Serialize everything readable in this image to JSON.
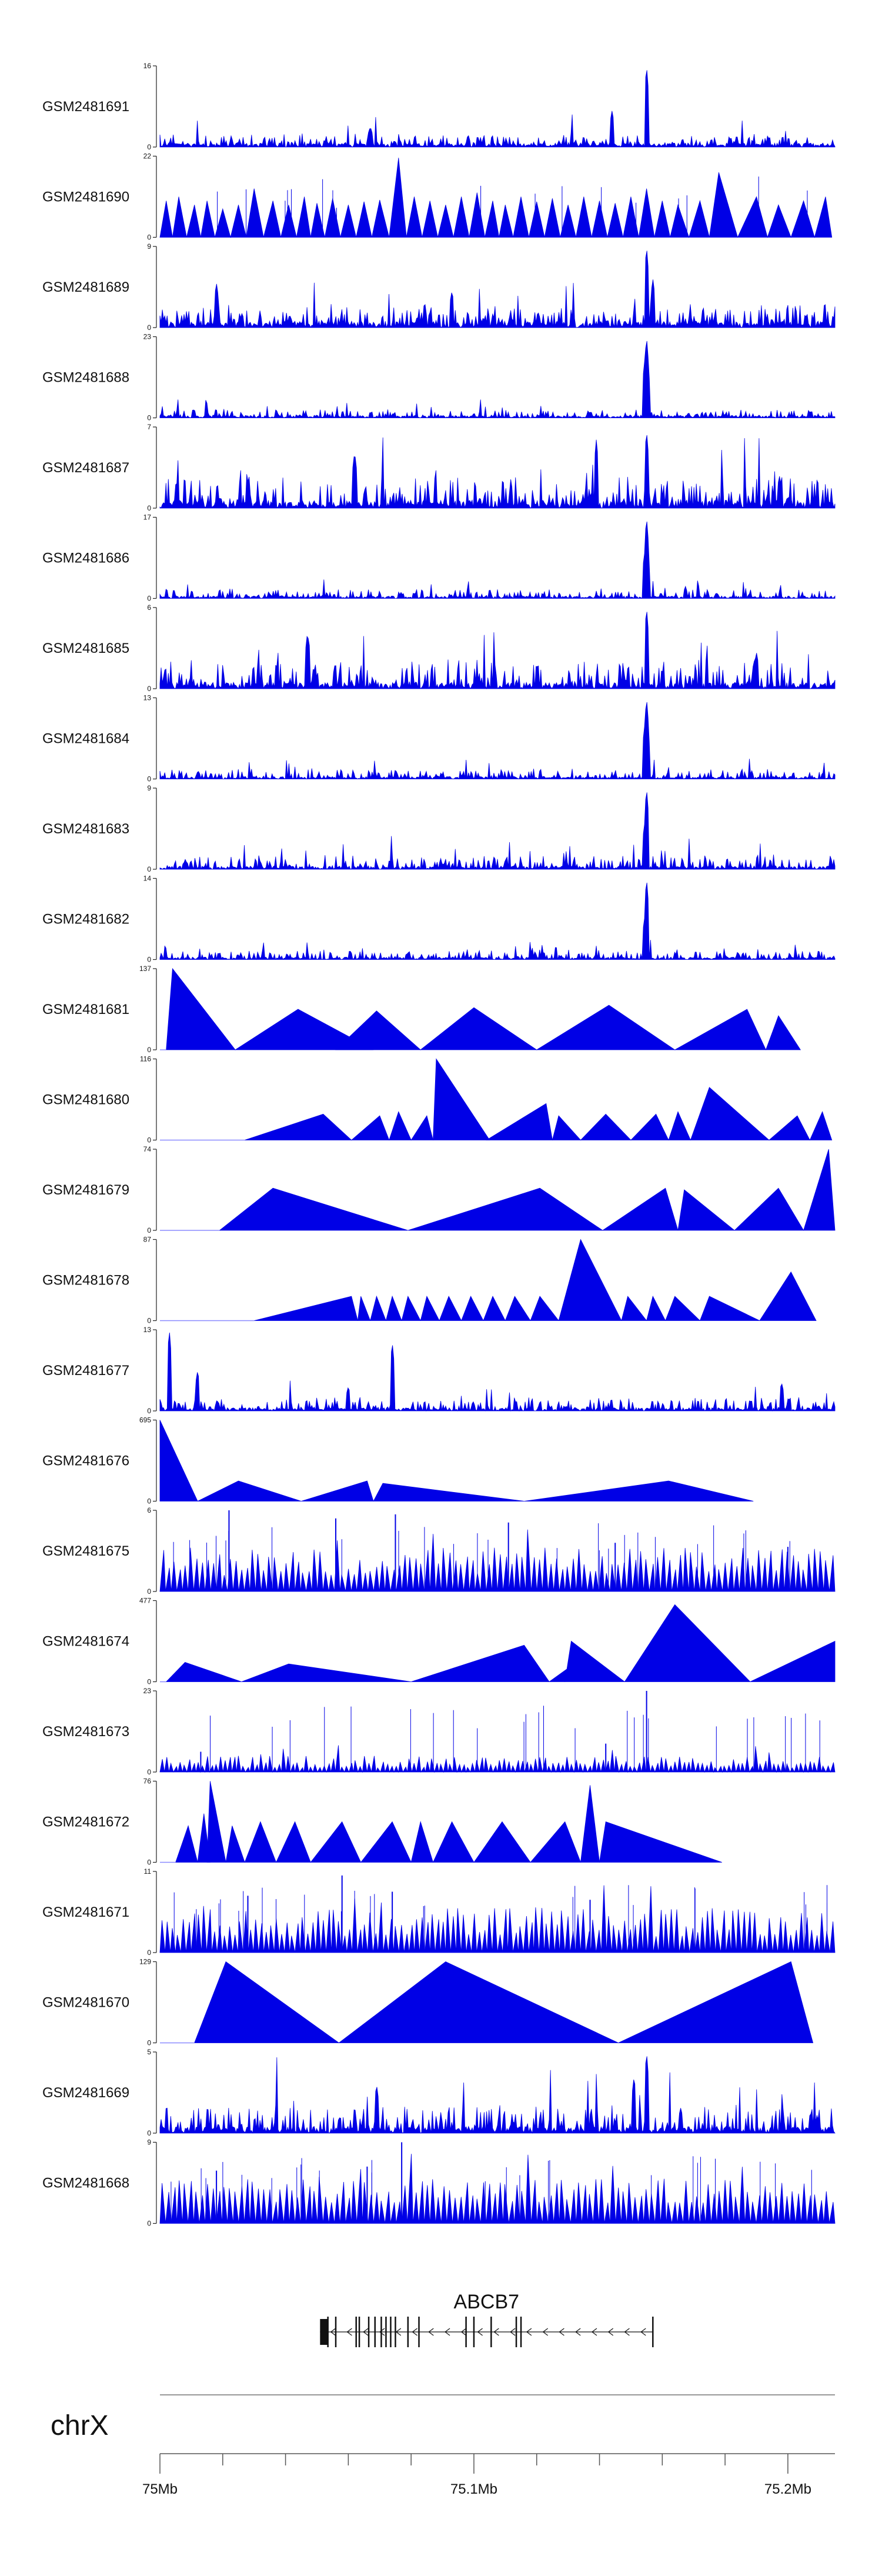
{
  "colors": {
    "signal": "#0000e6",
    "axis": "#222222",
    "gene": "#111111"
  },
  "chart_data": {
    "type": "area",
    "title": "",
    "chromosome": "chrX",
    "x_unit": "Mb",
    "xlim": [
      75.0,
      75.215
    ],
    "x_ticks": [
      {
        "value": 75.0,
        "label": "75Mb"
      },
      {
        "value": 75.1,
        "label": "75.1Mb"
      },
      {
        "value": 75.2,
        "label": "75.2Mb"
      }
    ],
    "x_minor_ticks": [
      75.02,
      75.04,
      75.06,
      75.08,
      75.12,
      75.14,
      75.16,
      75.18
    ],
    "gene": {
      "name": "ABCB7",
      "strand": "-",
      "start": 75.051,
      "end": 75.157,
      "utr": [
        75.051,
        75.0535
      ],
      "exons": [
        75.0535,
        75.056,
        75.0625,
        75.0635,
        75.0665,
        75.0685,
        75.0705,
        75.072,
        75.0735,
        75.075,
        75.079,
        75.0825,
        75.0975,
        75.1,
        75.1055,
        75.1135,
        75.115,
        75.157
      ]
    },
    "series": [
      {
        "name": "GSM2481691",
        "ymax": 16,
        "style": "dense",
        "seed": 11,
        "base": 0.05,
        "noise": 0.12,
        "spikes": [
          [
            75.144,
            0.45
          ],
          [
            75.155,
            1.0
          ],
          [
            75.067,
            0.25
          ]
        ]
      },
      {
        "name": "GSM2481690",
        "ymax": 22,
        "style": "tri",
        "seed": 12,
        "tri_x": [
          75.002,
          75.006,
          75.011,
          75.015,
          75.02,
          75.025,
          75.03,
          75.036,
          75.041,
          75.046,
          75.05,
          75.055,
          75.06,
          75.065,
          75.07,
          75.076,
          75.081,
          75.086,
          75.091,
          75.096,
          75.101,
          75.106,
          75.11,
          75.115,
          75.12,
          75.125,
          75.13,
          75.135,
          75.14,
          75.145,
          75.15,
          75.155,
          75.16,
          75.165,
          75.172,
          75.178,
          75.19,
          75.197,
          75.205,
          75.212
        ],
        "tri_h": [
          0.45,
          0.5,
          0.4,
          0.45,
          0.35,
          0.4,
          0.6,
          0.45,
          0.4,
          0.5,
          0.42,
          0.48,
          0.4,
          0.44,
          0.46,
          0.98,
          0.5,
          0.45,
          0.4,
          0.5,
          0.55,
          0.45,
          0.4,
          0.5,
          0.44,
          0.48,
          0.4,
          0.5,
          0.45,
          0.42,
          0.5,
          0.6,
          0.45,
          0.4,
          0.45,
          0.8,
          0.5,
          0.4,
          0.45,
          0.5
        ]
      },
      {
        "name": "GSM2481689",
        "ymax": 9,
        "style": "dense",
        "seed": 13,
        "base": 0.08,
        "noise": 0.22,
        "spikes": [
          [
            75.155,
            1.0
          ],
          [
            75.157,
            0.6
          ],
          [
            75.018,
            0.55
          ],
          [
            75.093,
            0.45
          ]
        ]
      },
      {
        "name": "GSM2481688",
        "ymax": 23,
        "style": "dense",
        "seed": 14,
        "base": 0.03,
        "noise": 0.08,
        "spikes": [
          [
            75.155,
            1.0
          ],
          [
            75.1545,
            0.75
          ],
          [
            75.1555,
            0.6
          ]
        ]
      },
      {
        "name": "GSM2481687",
        "ymax": 7,
        "style": "dense",
        "seed": 15,
        "base": 0.1,
        "noise": 0.3,
        "spikes": [
          [
            75.155,
            0.95
          ],
          [
            75.139,
            0.85
          ],
          [
            75.062,
            0.7
          ]
        ]
      },
      {
        "name": "GSM2481686",
        "ymax": 17,
        "style": "dense",
        "seed": 16,
        "base": 0.03,
        "noise": 0.1,
        "spikes": [
          [
            75.155,
            1.0
          ],
          [
            75.1545,
            0.6
          ],
          [
            75.1555,
            0.5
          ]
        ]
      },
      {
        "name": "GSM2481685",
        "ymax": 6,
        "style": "dense",
        "seed": 17,
        "base": 0.08,
        "noise": 0.3,
        "spikes": [
          [
            75.155,
            1.0
          ],
          [
            75.047,
            0.7
          ],
          [
            75.19,
            0.45
          ]
        ]
      },
      {
        "name": "GSM2481684",
        "ymax": 13,
        "style": "dense",
        "seed": 18,
        "base": 0.03,
        "noise": 0.1,
        "spikes": [
          [
            75.155,
            1.0
          ],
          [
            75.1545,
            0.7
          ],
          [
            75.1555,
            0.55
          ]
        ]
      },
      {
        "name": "GSM2481683",
        "ymax": 9,
        "style": "dense",
        "seed": 19,
        "base": 0.04,
        "noise": 0.14,
        "spikes": [
          [
            75.155,
            1.0
          ],
          [
            75.1545,
            0.6
          ]
        ]
      },
      {
        "name": "GSM2481682",
        "ymax": 14,
        "style": "dense",
        "seed": 20,
        "base": 0.03,
        "noise": 0.09,
        "spikes": [
          [
            75.155,
            1.0
          ],
          [
            75.1545,
            0.55
          ]
        ]
      },
      {
        "name": "GSM2481681",
        "ymax": 137,
        "style": "sparse",
        "seed": 21,
        "peaks": [
          [
            75.004,
            1.0,
            75.002,
            75.024
          ],
          [
            75.044,
            0.5,
            75.024,
            75.068
          ],
          [
            75.069,
            0.48,
            75.056,
            75.083
          ],
          [
            75.1,
            0.52,
            75.083,
            75.12
          ],
          [
            75.143,
            0.55,
            75.12,
            75.164
          ],
          [
            75.187,
            0.5,
            75.164,
            75.193
          ],
          [
            75.197,
            0.42,
            75.193,
            75.204
          ]
        ]
      },
      {
        "name": "GSM2481680",
        "ymax": 116,
        "style": "sparse",
        "seed": 22,
        "peaks": [
          [
            75.052,
            0.32,
            75.027,
            75.061
          ],
          [
            75.07,
            0.3,
            75.061,
            75.073
          ],
          [
            75.076,
            0.35,
            75.073,
            75.08
          ],
          [
            75.085,
            0.3,
            75.08,
            75.087
          ],
          [
            75.088,
            1.0,
            75.087,
            75.105
          ],
          [
            75.123,
            0.45,
            75.104,
            75.125
          ],
          [
            75.127,
            0.3,
            75.125,
            75.134
          ],
          [
            75.142,
            0.32,
            75.134,
            75.15
          ],
          [
            75.158,
            0.32,
            75.15,
            75.162
          ],
          [
            75.165,
            0.35,
            75.162,
            75.169
          ],
          [
            75.175,
            0.65,
            75.169,
            75.194
          ],
          [
            75.203,
            0.3,
            75.194,
            75.207
          ],
          [
            75.211,
            0.35,
            75.207,
            75.214
          ]
        ]
      },
      {
        "name": "GSM2481679",
        "ymax": 74,
        "style": "sparse",
        "seed": 23,
        "peaks": [
          [
            75.036,
            0.52,
            75.019,
            75.079
          ],
          [
            75.121,
            0.52,
            75.079,
            75.141
          ],
          [
            75.161,
            0.52,
            75.141,
            75.165
          ],
          [
            75.167,
            0.5,
            75.165,
            75.183
          ],
          [
            75.197,
            0.52,
            75.183,
            75.205
          ],
          [
            75.213,
            1.0,
            75.205,
            75.215
          ]
        ]
      },
      {
        "name": "GSM2481678",
        "ymax": 87,
        "style": "sparse",
        "seed": 24,
        "peaks": [
          [
            75.061,
            0.3,
            75.03,
            75.063
          ],
          [
            75.064,
            0.3,
            75.063,
            75.067
          ],
          [
            75.069,
            0.3,
            75.067,
            75.072
          ],
          [
            75.074,
            0.3,
            75.072,
            75.077
          ],
          [
            75.079,
            0.3,
            75.077,
            75.083
          ],
          [
            75.085,
            0.3,
            75.083,
            75.089
          ],
          [
            75.092,
            0.3,
            75.089,
            75.096
          ],
          [
            75.099,
            0.3,
            75.096,
            75.103
          ],
          [
            75.106,
            0.3,
            75.103,
            75.11
          ],
          [
            75.113,
            0.3,
            75.11,
            75.118
          ],
          [
            75.121,
            0.3,
            75.118,
            75.127
          ],
          [
            75.134,
            1.0,
            75.127,
            75.147
          ],
          [
            75.149,
            0.3,
            75.147,
            75.155
          ],
          [
            75.157,
            0.3,
            75.155,
            75.161
          ],
          [
            75.164,
            0.3,
            75.161,
            75.172
          ],
          [
            75.175,
            0.3,
            75.172,
            75.191
          ],
          [
            75.201,
            0.6,
            75.191,
            75.209
          ]
        ]
      },
      {
        "name": "GSM2481677",
        "ymax": 13,
        "style": "dense",
        "seed": 25,
        "base": 0.04,
        "noise": 0.13,
        "spikes": [
          [
            75.003,
            1.0
          ],
          [
            75.012,
            0.5
          ],
          [
            75.074,
            0.85
          ],
          [
            75.198,
            0.35
          ],
          [
            75.06,
            0.3
          ]
        ]
      },
      {
        "name": "GSM2481676",
        "ymax": 695,
        "style": "sparse",
        "seed": 26,
        "peaks": [
          [
            75.0,
            1.0,
            75.0,
            75.012
          ],
          [
            75.025,
            0.25,
            75.012,
            75.045
          ],
          [
            75.066,
            0.25,
            75.045,
            75.068
          ],
          [
            75.071,
            0.22,
            75.068,
            75.116
          ],
          [
            75.162,
            0.25,
            75.116,
            75.189
          ]
        ]
      },
      {
        "name": "GSM2481675",
        "ymax": 6,
        "style": "tri_dense",
        "seed": 27,
        "count": 120,
        "hmin": 0.2,
        "hmax": 0.55,
        "tall": [
          [
            75.022,
            1.0
          ],
          [
            75.056,
            0.9
          ],
          [
            75.075,
            0.95
          ],
          [
            75.111,
            0.85
          ],
          [
            75.145,
            0.6
          ],
          [
            75.2,
            0.55
          ]
        ]
      },
      {
        "name": "GSM2481674",
        "ymax": 477,
        "style": "sparse",
        "seed": 28,
        "peaks": [
          [
            75.008,
            0.24,
            75.002,
            75.026
          ],
          [
            75.041,
            0.22,
            75.026,
            75.08
          ],
          [
            75.116,
            0.45,
            75.08,
            75.124
          ],
          [
            75.133,
            0.25,
            75.124,
            75.129
          ],
          [
            75.131,
            0.5,
            75.129,
            75.148
          ],
          [
            75.164,
            0.95,
            75.148,
            75.188
          ],
          [
            75.215,
            0.5,
            75.188,
            75.215
          ]
        ]
      },
      {
        "name": "GSM2481673",
        "ymax": 23,
        "style": "tri_dense",
        "seed": 29,
        "count": 150,
        "hmin": 0.05,
        "hmax": 0.2,
        "tall": [
          [
            75.155,
            1.0
          ],
          [
            75.142,
            0.35
          ],
          [
            75.013,
            0.25
          ]
        ]
      },
      {
        "name": "GSM2481672",
        "ymax": 76,
        "style": "sparse",
        "seed": 30,
        "peaks": [
          [
            75.009,
            0.45,
            75.005,
            75.012
          ],
          [
            75.014,
            0.6,
            75.012,
            75.016
          ],
          [
            75.016,
            1.0,
            75.015,
            75.021
          ],
          [
            75.023,
            0.45,
            75.021,
            75.027
          ],
          [
            75.032,
            0.5,
            75.027,
            75.037
          ],
          [
            75.043,
            0.5,
            75.037,
            75.048
          ],
          [
            75.058,
            0.5,
            75.048,
            75.064
          ],
          [
            75.074,
            0.5,
            75.064,
            75.08
          ],
          [
            75.083,
            0.5,
            75.08,
            75.087
          ],
          [
            75.093,
            0.5,
            75.087,
            75.1
          ],
          [
            75.109,
            0.5,
            75.1,
            75.118
          ],
          [
            75.129,
            0.5,
            75.118,
            75.134
          ],
          [
            75.137,
            0.95,
            75.134,
            75.14
          ],
          [
            75.142,
            0.5,
            75.14,
            75.179
          ]
        ]
      },
      {
        "name": "GSM2481671",
        "ymax": 11,
        "style": "tri_dense",
        "seed": 31,
        "count": 130,
        "hmin": 0.2,
        "hmax": 0.55,
        "tall": [
          [
            75.058,
            0.95
          ],
          [
            75.028,
            0.7
          ],
          [
            75.074,
            0.75
          ],
          [
            75.137,
            0.65
          ]
        ]
      },
      {
        "name": "GSM2481670",
        "ymax": 129,
        "style": "sparse",
        "seed": 32,
        "peaks": [
          [
            75.021,
            1.0,
            75.011,
            75.057
          ],
          [
            75.091,
            1.0,
            75.057,
            75.146
          ],
          [
            75.201,
            1.0,
            75.146,
            75.208
          ]
        ]
      },
      {
        "name": "GSM2481669",
        "ymax": 5,
        "style": "dense",
        "seed": 33,
        "base": 0.08,
        "noise": 0.28,
        "spikes": [
          [
            75.155,
            1.0
          ],
          [
            75.069,
            0.6
          ],
          [
            75.151,
            0.7
          ]
        ]
      },
      {
        "name": "GSM2481668",
        "ymax": 9,
        "style": "tri_dense",
        "seed": 34,
        "count": 120,
        "hmin": 0.25,
        "hmax": 0.55,
        "tall": [
          [
            75.077,
            1.0
          ],
          [
            75.066,
            0.7
          ],
          [
            75.018,
            0.65
          ]
        ]
      }
    ]
  }
}
